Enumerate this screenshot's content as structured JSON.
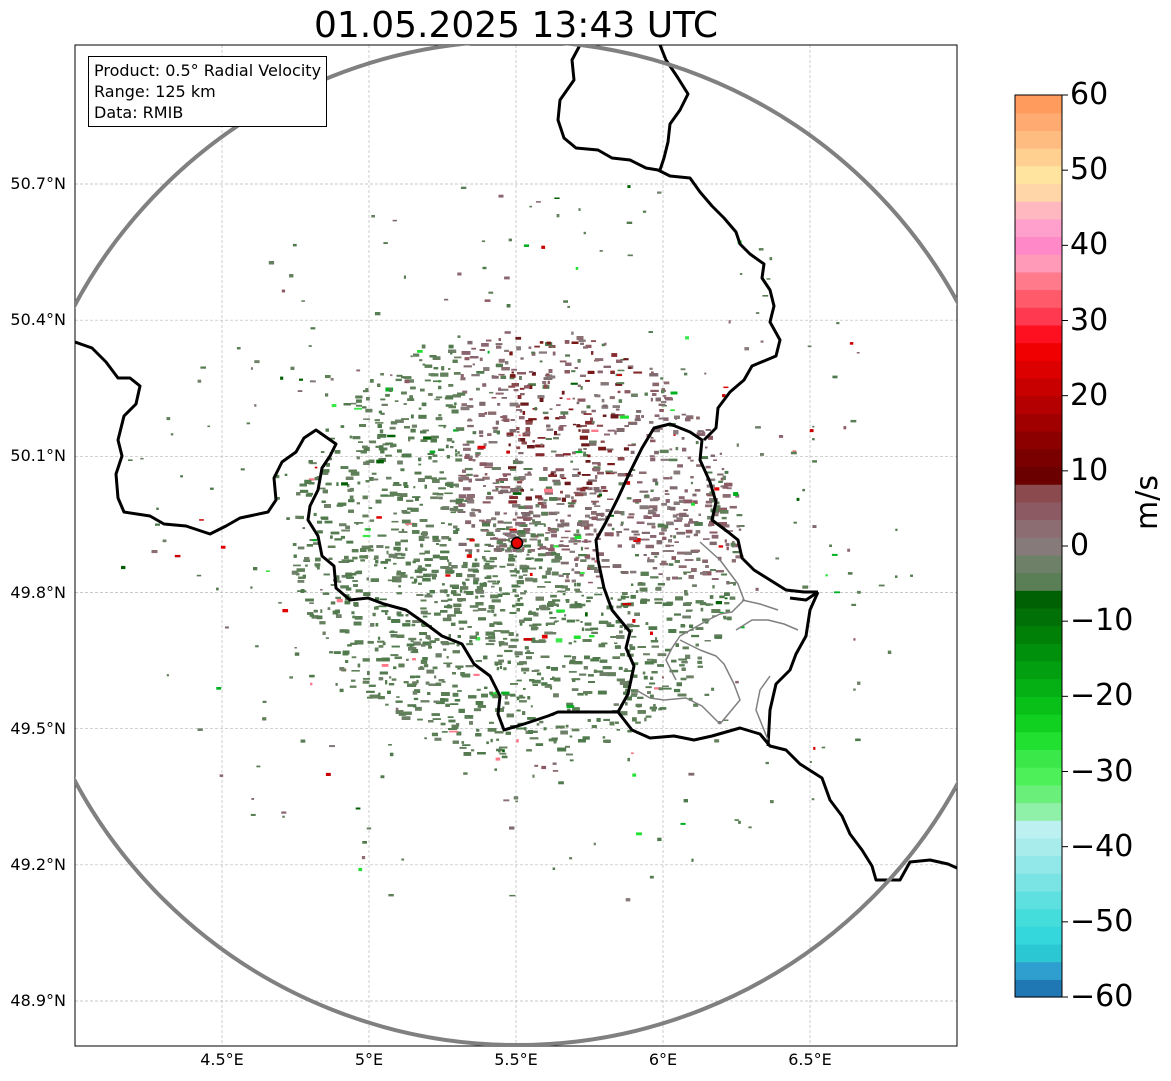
{
  "title": "01.05.2025 13:43 UTC",
  "info_box": {
    "product": "Product: 0.5° Radial Velocity",
    "range": "Range: 125 km",
    "data": "Data: RMIB"
  },
  "axes": {
    "lon_range": [
      4.0,
      7.0
    ],
    "lat_range": [
      48.8,
      51.0
    ],
    "x_ticks": [
      "4.5°E",
      "5°E",
      "5.5°E",
      "6°E",
      "6.5°E"
    ],
    "y_ticks": [
      "50.7°N",
      "50.4°N",
      "50.1°N",
      "49.8°N",
      "49.5°N",
      "49.2°N",
      "48.9°N"
    ],
    "grid": "on (dashed, light gray)"
  },
  "colorbar": {
    "label": "m/s",
    "ticks": [
      "60",
      "50",
      "40",
      "30",
      "20",
      "10",
      "0",
      "−10",
      "−20",
      "−30",
      "−40",
      "−50",
      "−60"
    ],
    "range": [
      -60,
      60
    ],
    "colors": [
      "#1f77b4",
      "#2f9fd0",
      "#2bc8d4",
      "#34d8dc",
      "#45dcdc",
      "#5ee0e0",
      "#7ae4e4",
      "#92e8e8",
      "#a8ecec",
      "#bdf0f0",
      "#8ff0a8",
      "#6af07a",
      "#4ef05a",
      "#3ae84a",
      "#22e030",
      "#10d020",
      "#08c018",
      "#04b014",
      "#02a010",
      "#01900c",
      "#018008",
      "#017006",
      "#006004",
      "#5a7e55",
      "#6e8068",
      "#877a7a",
      "#8c6e72",
      "#8c5a62",
      "#8a4a4e",
      "#6a0000",
      "#7a0000",
      "#8c0000",
      "#a00000",
      "#b40000",
      "#c80000",
      "#dc0000",
      "#f00000",
      "#ff1020",
      "#ff3a50",
      "#ff5a6a",
      "#ff7a8a",
      "#ff9ab8",
      "#ff88c8",
      "#ffa0cc",
      "#ffb8c0",
      "#ffd6a8",
      "#ffe4a0",
      "#ffd090",
      "#ffbc80",
      "#ffaa70",
      "#ff9b5c"
    ]
  },
  "radar": {
    "site_lon": 5.5,
    "site_lat": 49.91,
    "range_km": 125
  },
  "chart_data": {
    "type": "heatmap",
    "title": "01.05.2025 13:43 UTC",
    "xlabel": "",
    "ylabel": "",
    "x_ticks": [
      "4.5°E",
      "5°E",
      "5.5°E",
      "6°E",
      "6.5°E"
    ],
    "y_ticks": [
      "50.7°N",
      "50.4°N",
      "50.1°N",
      "49.8°N",
      "49.5°N",
      "49.2°N",
      "48.9°N"
    ],
    "colorbar_label": "m/s",
    "colorbar_range": [
      -60,
      60
    ],
    "regions": [
      {
        "name": "",
        "center": [
          5.65,
          50.15
        ],
        "velocity": 12
      },
      {
        "name": "",
        "center": [
          5.35,
          49.78
        ],
        "velocity": -3
      },
      {
        "name": "",
        "center": [
          5.8,
          49.95
        ],
        "velocity": 2
      }
    ]
  }
}
